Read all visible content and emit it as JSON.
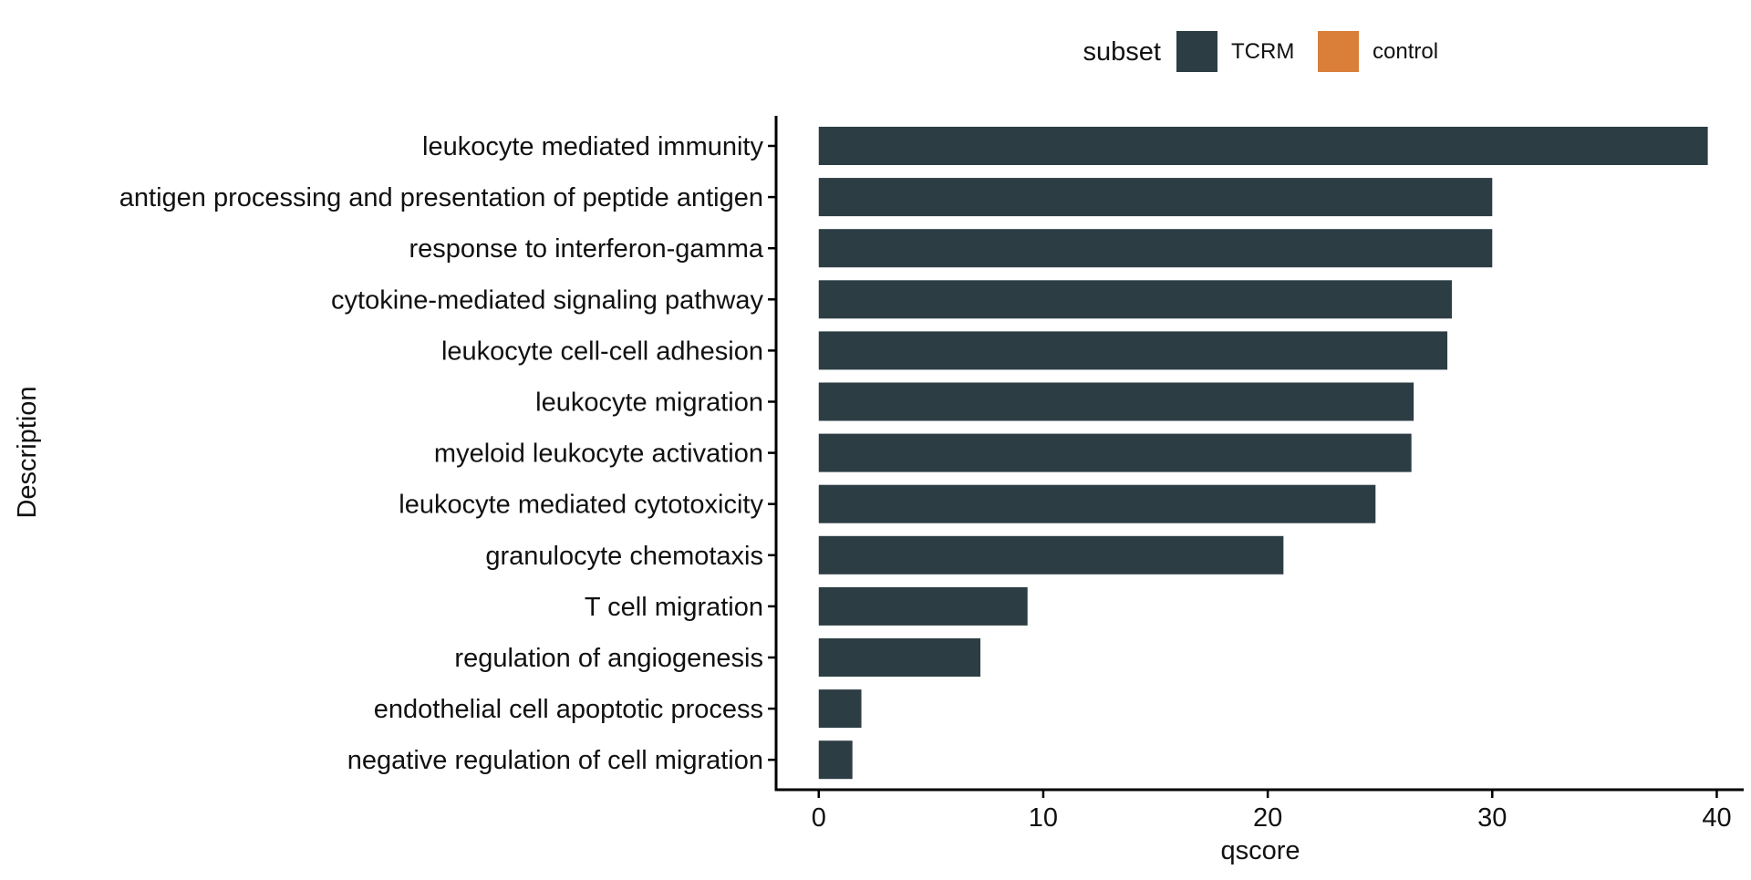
{
  "chart_data": {
    "type": "bar",
    "orientation": "horizontal",
    "categories": [
      "leukocyte mediated immunity",
      "antigen processing and presentation of peptide antigen",
      "response to interferon-gamma",
      "cytokine-mediated signaling pathway",
      "leukocyte cell-cell adhesion",
      "leukocyte migration",
      "myeloid leukocyte activation",
      "leukocyte mediated cytotoxicity",
      "granulocyte chemotaxis",
      "T cell migration",
      "regulation of angiogenesis",
      "endothelial cell apoptotic process",
      "negative regulation of cell migration"
    ],
    "series": [
      {
        "name": "TCRM",
        "color": "#2c3e44",
        "values": [
          39.6,
          30.0,
          30.0,
          28.2,
          28.0,
          26.5,
          26.4,
          24.8,
          20.7,
          9.3,
          7.2,
          1.9,
          1.5
        ]
      }
    ],
    "title": "",
    "xlabel": "qscore",
    "ylabel": "Description",
    "xlim": [
      -1.9,
      41.2
    ],
    "xticks": [
      0,
      10,
      20,
      30,
      40
    ],
    "grid": false,
    "legend": {
      "title": "subset",
      "position": "top",
      "items": [
        {
          "label": "TCRM",
          "color": "#2c3e44"
        },
        {
          "label": "control",
          "color": "#d97f3a"
        }
      ]
    }
  }
}
